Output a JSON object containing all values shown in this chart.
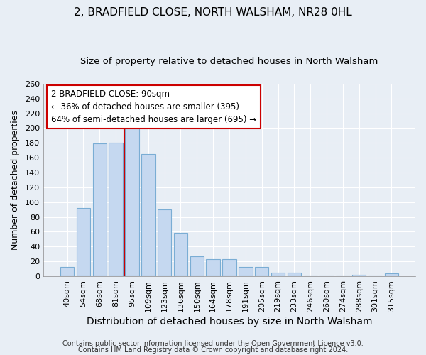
{
  "title": "2, BRADFIELD CLOSE, NORTH WALSHAM, NR28 0HL",
  "subtitle": "Size of property relative to detached houses in North Walsham",
  "xlabel": "Distribution of detached houses by size in North Walsham",
  "ylabel": "Number of detached properties",
  "footer_lines": [
    "Contains HM Land Registry data © Crown copyright and database right 2024.",
    "Contains public sector information licensed under the Open Government Licence v3.0."
  ],
  "bar_labels": [
    "40sqm",
    "54sqm",
    "68sqm",
    "81sqm",
    "95sqm",
    "109sqm",
    "123sqm",
    "136sqm",
    "150sqm",
    "164sqm",
    "178sqm",
    "191sqm",
    "205sqm",
    "219sqm",
    "233sqm",
    "246sqm",
    "260sqm",
    "274sqm",
    "288sqm",
    "301sqm",
    "315sqm"
  ],
  "bar_values": [
    13,
    92,
    179,
    180,
    210,
    165,
    90,
    59,
    27,
    23,
    23,
    13,
    13,
    5,
    5,
    0,
    0,
    0,
    2,
    0,
    4
  ],
  "bar_color": "#c5d8f0",
  "bar_edge_color": "#7aadd4",
  "background_color": "#e8eef5",
  "plot_bg_color": "#e8eef5",
  "red_line_index": 4,
  "annotation_box_text": "2 BRADFIELD CLOSE: 90sqm\n← 36% of detached houses are smaller (395)\n64% of semi-detached houses are larger (695) →",
  "ylim": [
    0,
    260
  ],
  "yticks": [
    0,
    20,
    40,
    60,
    80,
    100,
    120,
    140,
    160,
    180,
    200,
    220,
    240,
    260
  ],
  "title_fontsize": 11,
  "subtitle_fontsize": 9.5,
  "xlabel_fontsize": 10,
  "ylabel_fontsize": 9,
  "tick_fontsize": 8,
  "annotation_fontsize": 8.5,
  "footer_fontsize": 7
}
